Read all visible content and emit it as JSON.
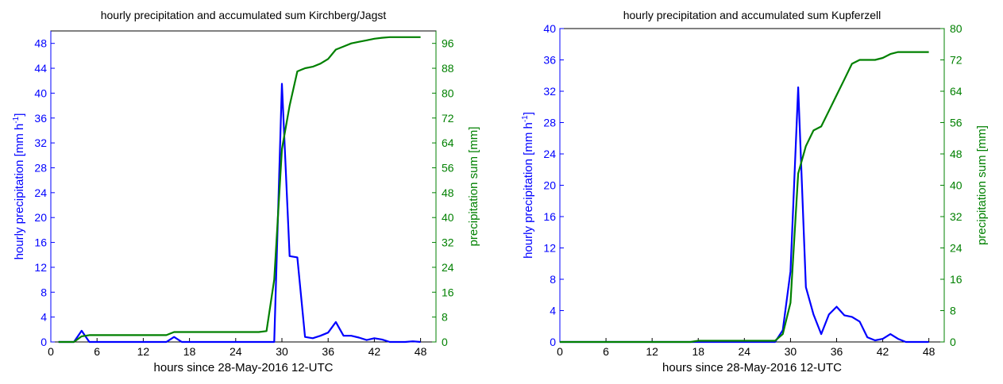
{
  "colors": {
    "left_axis": "#0000ff",
    "right_axis": "#008000",
    "frame": "#000000",
    "background": "#ffffff"
  },
  "chart_data": [
    {
      "type": "line",
      "title": "hourly precipitation and accumulated sum Kirchberg/Jagst",
      "xlabel": "hours since 28-May-2016 12-UTC",
      "ylabel": "hourly precipitation [mm h-1]",
      "ylabel_base": "hourly precipitation [mm h",
      "ylabel_sup": "-1",
      "ylabel_end": "]",
      "y2label": "precipitation sum [mm]",
      "xlim": [
        0,
        50
      ],
      "ylim": [
        0,
        50
      ],
      "y2lim": [
        0,
        100
      ],
      "xticks": [
        0,
        6,
        12,
        18,
        24,
        30,
        36,
        42,
        48
      ],
      "yticks": [
        0,
        4,
        8,
        12,
        16,
        20,
        24,
        28,
        32,
        36,
        40,
        44,
        48
      ],
      "y2ticks": [
        0,
        8,
        16,
        24,
        32,
        40,
        48,
        56,
        64,
        72,
        80,
        88,
        96
      ],
      "grid": false,
      "series": [
        {
          "axis": "left",
          "color": "#0000ff",
          "x": [
            1,
            2,
            3,
            4,
            5,
            6,
            7,
            8,
            9,
            10,
            11,
            12,
            13,
            14,
            15,
            16,
            17,
            18,
            19,
            20,
            21,
            22,
            23,
            24,
            25,
            26,
            27,
            28,
            29,
            30,
            31,
            32,
            33,
            34,
            35,
            36,
            37,
            38,
            39,
            40,
            41,
            42,
            43,
            44,
            45,
            46,
            47,
            48
          ],
          "y": [
            0,
            0,
            0,
            1.8,
            0,
            0,
            0,
            0,
            0,
            0,
            0,
            0,
            0,
            0,
            0,
            0.8,
            0,
            0,
            0,
            0,
            0,
            0,
            0,
            0,
            0,
            0,
            0,
            0,
            0,
            41.5,
            13.8,
            13.6,
            0.8,
            0.6,
            1.0,
            1.5,
            3.2,
            1.0,
            1.0,
            0.7,
            0.3,
            0.6,
            0.4,
            0,
            0,
            0,
            0.1,
            0
          ]
        },
        {
          "axis": "right",
          "color": "#008000",
          "x": [
            1,
            2,
            3,
            4,
            5,
            6,
            7,
            8,
            9,
            10,
            11,
            12,
            13,
            14,
            15,
            16,
            17,
            18,
            19,
            20,
            21,
            22,
            23,
            24,
            25,
            26,
            27,
            28,
            29,
            30,
            31,
            32,
            33,
            34,
            35,
            36,
            37,
            38,
            39,
            40,
            41,
            42,
            43,
            44,
            45,
            46,
            47,
            48
          ],
          "y": [
            0,
            0,
            0,
            1.8,
            2.2,
            2.2,
            2.2,
            2.2,
            2.2,
            2.2,
            2.2,
            2.2,
            2.2,
            2.2,
            2.2,
            3.2,
            3.2,
            3.2,
            3.2,
            3.2,
            3.2,
            3.2,
            3.2,
            3.2,
            3.2,
            3.2,
            3.2,
            3.5,
            20,
            62,
            76,
            87,
            88,
            88.5,
            89.5,
            91,
            94,
            95,
            96,
            96.5,
            97,
            97.5,
            97.8,
            98,
            98,
            98,
            98,
            98
          ]
        }
      ]
    },
    {
      "type": "line",
      "title": "hourly precipitation and accumulated sum Kupferzell",
      "xlabel": "hours since 28-May-2016 12-UTC",
      "ylabel": "hourly precipitation [mm h-1]",
      "ylabel_base": "hourly precipitation [mm h",
      "ylabel_sup": "-1",
      "ylabel_end": "]",
      "y2label": "precipitation sum [mm]",
      "xlim": [
        0,
        50
      ],
      "ylim": [
        0,
        40
      ],
      "y2lim": [
        0,
        80
      ],
      "xticks": [
        0,
        6,
        12,
        18,
        24,
        30,
        36,
        42,
        48
      ],
      "yticks": [
        0,
        4,
        8,
        12,
        16,
        20,
        24,
        28,
        32,
        36,
        40
      ],
      "y2ticks": [
        0,
        8,
        16,
        24,
        32,
        40,
        48,
        56,
        64,
        72,
        80
      ],
      "grid": false,
      "series": [
        {
          "axis": "left",
          "color": "#0000ff",
          "x": [
            0,
            1,
            2,
            3,
            4,
            5,
            6,
            7,
            8,
            9,
            10,
            11,
            12,
            13,
            14,
            15,
            16,
            17,
            18,
            19,
            20,
            21,
            22,
            23,
            24,
            25,
            26,
            27,
            28,
            29,
            30,
            31,
            32,
            33,
            34,
            35,
            36,
            37,
            38,
            39,
            40,
            41,
            42,
            43,
            44,
            45,
            46,
            47,
            48
          ],
          "y": [
            0,
            0,
            0,
            0,
            0,
            0,
            0,
            0,
            0,
            0,
            0,
            0,
            0,
            0,
            0,
            0,
            0,
            0,
            0,
            0,
            0,
            0,
            0,
            0,
            0,
            0,
            0,
            0,
            0,
            1.5,
            9,
            32.5,
            7,
            3.5,
            1,
            3.5,
            4.5,
            3.4,
            3.2,
            2.6,
            0.6,
            0.2,
            0.4,
            1.0,
            0.4,
            0,
            0,
            0,
            0
          ]
        },
        {
          "axis": "right",
          "color": "#008000",
          "x": [
            0,
            1,
            2,
            3,
            4,
            5,
            6,
            7,
            8,
            9,
            10,
            11,
            12,
            13,
            14,
            15,
            16,
            17,
            18,
            19,
            20,
            21,
            22,
            23,
            24,
            25,
            26,
            27,
            28,
            29,
            30,
            31,
            32,
            33,
            34,
            35,
            36,
            37,
            38,
            39,
            40,
            41,
            42,
            43,
            44,
            45,
            46,
            47,
            48
          ],
          "y": [
            0,
            0,
            0,
            0,
            0,
            0,
            0,
            0,
            0,
            0,
            0,
            0,
            0,
            0,
            0,
            0,
            0,
            0,
            0.3,
            0.3,
            0.3,
            0.3,
            0.3,
            0.3,
            0.3,
            0.3,
            0.3,
            0.3,
            0.3,
            2,
            10,
            43,
            50,
            54,
            55,
            59,
            63,
            67,
            71,
            72,
            72,
            72,
            72.5,
            73.5,
            74,
            74,
            74,
            74,
            74
          ]
        }
      ]
    }
  ]
}
